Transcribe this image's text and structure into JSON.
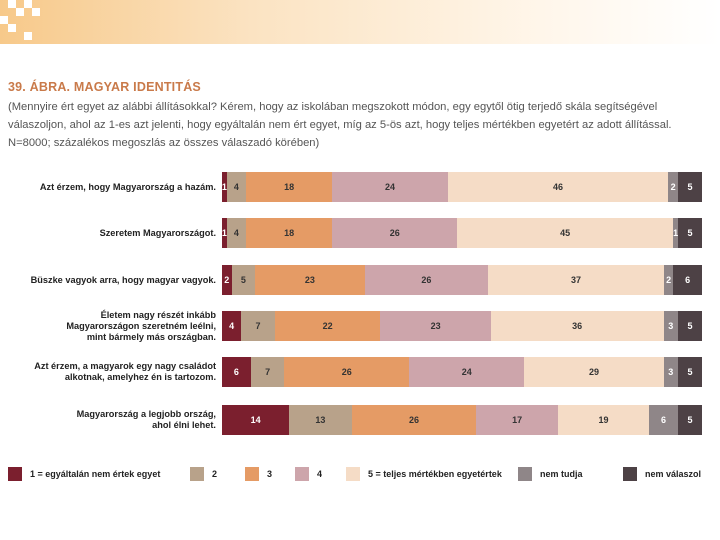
{
  "header": {
    "title": "39. ÁBRA. MAGYAR IDENTITÁS",
    "subtitle": "(Mennyire ért egyet az alábbi állításokkal? Kérem, hogy az iskolában megszokott módon, egy egytől ötig terjedő skála segítségével válaszoljon, ahol az 1-es azt jelenti, hogy egyáltalán nem ért egyet, míg az 5-ös azt, hogy teljes mértékben egyetért az adott állítással. N=8000; százalékos megoszlás az összes válaszadó körében)"
  },
  "colors": {
    "c1": "#7b1f2e",
    "c2": "#b8a28a",
    "c3": "#e59b65",
    "c4": "#cda5ab",
    "c5": "#f5dcc6",
    "nt": "#8f8688",
    "nv": "#4d4145"
  },
  "chart_data": {
    "type": "bar",
    "orientation": "horizontal",
    "stacked": true,
    "categories": [
      [
        "Azt érzem, hogy Magyarország a hazám."
      ],
      [
        "Szeretem Magyarországot."
      ],
      [
        "Büszke vagyok arra, hogy magyar vagyok."
      ],
      [
        "Életem nagy részét inkább",
        "Magyarországon szeretném leélni,",
        "mint bármely más országban."
      ],
      [
        "Azt érzem, a magyarok egy nagy családot",
        "alkotnak, amelyhez én is tartozom."
      ],
      [
        "Magyarország a legjobb ország,",
        "ahol élni lehet."
      ]
    ],
    "series": [
      {
        "name": "1 = egyáltalán nem értek egyet",
        "key": "c1",
        "values": [
          1,
          1,
          2,
          4,
          6,
          14
        ]
      },
      {
        "name": "2",
        "key": "c2",
        "values": [
          4,
          4,
          5,
          7,
          7,
          13
        ]
      },
      {
        "name": "3",
        "key": "c3",
        "values": [
          18,
          18,
          23,
          22,
          26,
          26
        ]
      },
      {
        "name": "4",
        "key": "c4",
        "values": [
          24,
          26,
          26,
          23,
          24,
          17
        ]
      },
      {
        "name": "5 = teljes mértékben egyetértek",
        "key": "c5",
        "values": [
          46,
          45,
          37,
          36,
          29,
          19
        ]
      },
      {
        "name": "nem tudja",
        "key": "nt",
        "values": [
          2,
          1,
          2,
          3,
          3,
          6
        ]
      },
      {
        "name": "nem válaszol",
        "key": "nv",
        "values": [
          5,
          5,
          6,
          5,
          5,
          5
        ]
      }
    ],
    "legend_position": "bottom"
  }
}
